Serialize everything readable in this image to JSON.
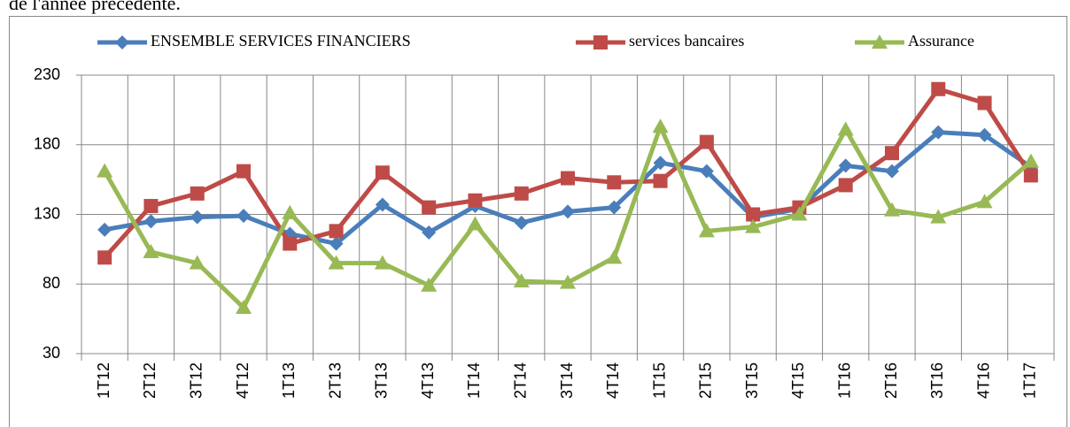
{
  "header_text": "de l'année précédente.",
  "chart_data": {
    "type": "line",
    "categories": [
      "1T12",
      "2T12",
      "3T12",
      "4T12",
      "1T13",
      "2T13",
      "3T13",
      "4T13",
      "1T14",
      "2T14",
      "3T14",
      "4T14",
      "1T15",
      "2T15",
      "3T15",
      "4T15",
      "1T16",
      "2T16",
      "3T16",
      "4T16",
      "1T17"
    ],
    "series": [
      {
        "name": "ENSEMBLE SERVICES FINANCIERS",
        "color": "#4a7ebb",
        "marker": "diamond",
        "values": [
          119,
          125,
          128,
          129,
          116,
          109,
          137,
          117,
          136,
          124,
          132,
          135,
          167,
          161,
          128,
          134,
          165,
          161,
          189,
          187,
          164
        ]
      },
      {
        "name": "services bancaires",
        "color": "#be4b48",
        "marker": "square",
        "values": [
          99,
          136,
          145,
          161,
          109,
          118,
          160,
          135,
          140,
          145,
          156,
          153,
          154,
          182,
          130,
          135,
          151,
          174,
          220,
          210,
          158
        ]
      },
      {
        "name": "Assurance",
        "color": "#98b954",
        "marker": "triangle",
        "values": [
          161,
          103,
          95,
          63,
          131,
          95,
          95,
          79,
          123,
          82,
          81,
          99,
          193,
          118,
          121,
          130,
          191,
          133,
          128,
          139,
          168
        ]
      }
    ],
    "ylim": [
      30,
      230
    ],
    "yticks": [
      30,
      80,
      130,
      180,
      230
    ],
    "grid": true,
    "legend": "top"
  }
}
